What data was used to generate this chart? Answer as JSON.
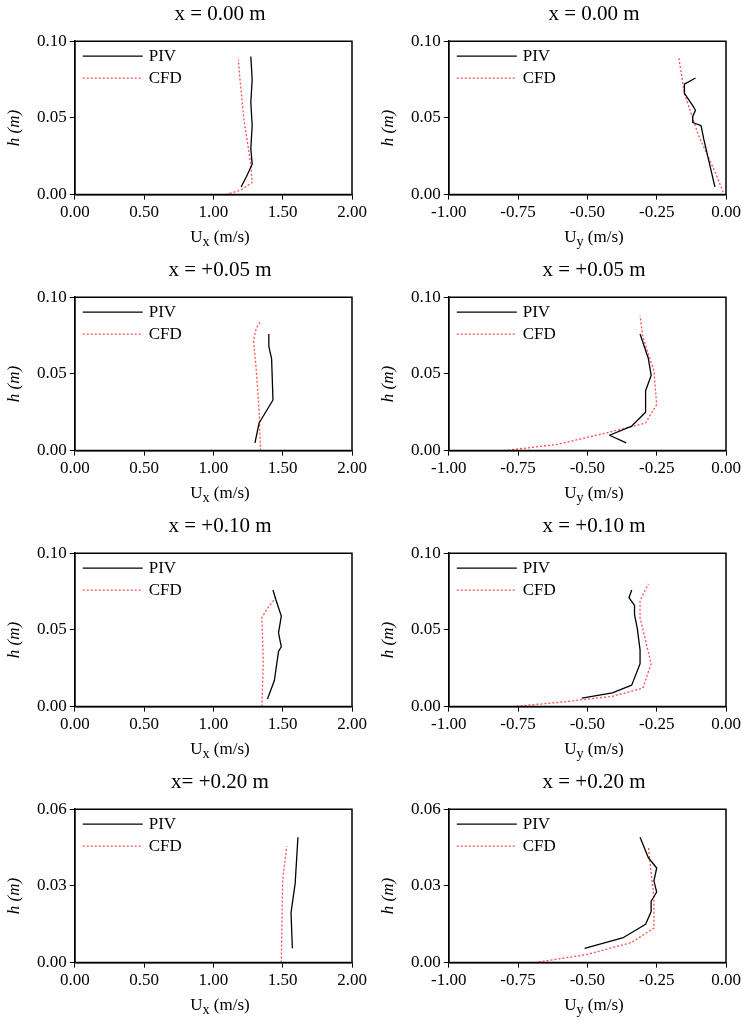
{
  "chart_data": [
    {
      "type": "line",
      "title": "x = 0.00 m",
      "xlabel": "U$_{x}$ (m/s)",
      "ylabel": "h (m)",
      "legend": "top left",
      "xlim": [
        0,
        2
      ],
      "xticks": [
        {
          "value": 0,
          "label": "0.00"
        },
        {
          "value": 0.5,
          "label": "0.50"
        },
        {
          "value": 1,
          "label": "1.00"
        },
        {
          "value": 1.5,
          "label": "1.50"
        },
        {
          "value": 2,
          "label": "2.00"
        }
      ],
      "ylim": [
        0,
        0.1
      ],
      "yticks": [
        {
          "value": 0,
          "label": "0.00"
        },
        {
          "value": 0.05,
          "label": "0.05"
        },
        {
          "value": 0.1,
          "label": "0.10"
        }
      ],
      "series": [
        {
          "name": "PIV",
          "color": "#000000",
          "line_style": "solid",
          "x": [
            1.2,
            1.24,
            1.28,
            1.27,
            1.28,
            1.27,
            1.28,
            1.27
          ],
          "values": [
            0.005,
            0.012,
            0.02,
            0.03,
            0.045,
            0.06,
            0.075,
            0.09
          ]
        },
        {
          "name": "CFD",
          "color": "#ff4d4d",
          "line_style": "dotted",
          "x": [
            1.09,
            1.2,
            1.28,
            1.27,
            1.22,
            1.19,
            1.18
          ],
          "values": [
            0.0,
            0.003,
            0.008,
            0.02,
            0.049,
            0.077,
            0.088
          ]
        }
      ]
    },
    {
      "type": "line",
      "title": "x = 0.00 m",
      "xlabel": "U$_{y}$ (m/s)",
      "ylabel": "h (m)",
      "legend": "top left",
      "xlim": [
        -1,
        0
      ],
      "xticks": [
        {
          "value": -1,
          "label": "-1.00"
        },
        {
          "value": -0.75,
          "label": "-0.75"
        },
        {
          "value": -0.5,
          "label": "-0.50"
        },
        {
          "value": -0.25,
          "label": "-0.25"
        },
        {
          "value": 0,
          "label": "0.00"
        }
      ],
      "ylim": [
        0,
        0.1
      ],
      "yticks": [
        {
          "value": 0,
          "label": "0.00"
        },
        {
          "value": 0.05,
          "label": "0.05"
        },
        {
          "value": 0.1,
          "label": "0.10"
        }
      ],
      "series": [
        {
          "name": "PIV",
          "color": "#000000",
          "line_style": "solid",
          "x": [
            -0.04,
            -0.08,
            -0.09,
            -0.12,
            -0.12,
            -0.11,
            -0.12,
            -0.15,
            -0.15,
            -0.11
          ],
          "values": [
            0.005,
            0.036,
            0.045,
            0.047,
            0.051,
            0.055,
            0.058,
            0.066,
            0.072,
            0.076
          ]
        },
        {
          "name": "CFD",
          "color": "#ff4d4d",
          "line_style": "dotted",
          "x": [
            -0.01,
            -0.04,
            -0.1,
            -0.15,
            -0.17
          ],
          "values": [
            0.0015,
            0.015,
            0.039,
            0.066,
            0.089
          ]
        }
      ]
    },
    {
      "type": "line",
      "title": "x = +0.05 m",
      "xlabel": "U$_{x}$ (m/s)",
      "ylabel": "h (m)",
      "legend": "top left",
      "xlim": [
        0,
        2
      ],
      "xticks": [
        {
          "value": 0,
          "label": "0.00"
        },
        {
          "value": 0.5,
          "label": "0.50"
        },
        {
          "value": 1,
          "label": "1.00"
        },
        {
          "value": 1.5,
          "label": "1.50"
        },
        {
          "value": 2,
          "label": "2.00"
        }
      ],
      "ylim": [
        0,
        0.1
      ],
      "yticks": [
        {
          "value": 0,
          "label": "0.00"
        },
        {
          "value": 0.05,
          "label": "0.05"
        },
        {
          "value": 0.1,
          "label": "0.10"
        }
      ],
      "series": [
        {
          "name": "PIV",
          "color": "#000000",
          "line_style": "solid",
          "x": [
            1.3,
            1.33,
            1.43,
            1.42,
            1.4,
            1.4
          ],
          "values": [
            0.005,
            0.018,
            0.033,
            0.06,
            0.068,
            0.076
          ]
        },
        {
          "name": "CFD",
          "color": "#ff4d4d",
          "line_style": "dotted",
          "x": [
            1.34,
            1.33,
            1.31,
            1.29,
            1.31,
            1.34
          ],
          "values": [
            0.0,
            0.026,
            0.052,
            0.072,
            0.08,
            0.084
          ]
        }
      ]
    },
    {
      "type": "line",
      "title": "x = +0.05 m",
      "xlabel": "U$_{y}$ (m/s)",
      "ylabel": "h (m)",
      "legend": "top left",
      "xlim": [
        -1,
        0
      ],
      "xticks": [
        {
          "value": -1,
          "label": "-1.00"
        },
        {
          "value": -0.75,
          "label": "-0.75"
        },
        {
          "value": -0.5,
          "label": "-0.50"
        },
        {
          "value": -0.25,
          "label": "-0.25"
        },
        {
          "value": 0,
          "label": "0.00"
        }
      ],
      "ylim": [
        0,
        0.1
      ],
      "yticks": [
        {
          "value": 0,
          "label": "0.00"
        },
        {
          "value": 0.05,
          "label": "0.05"
        },
        {
          "value": 0.1,
          "label": "0.10"
        }
      ],
      "series": [
        {
          "name": "PIV",
          "color": "#000000",
          "line_style": "solid",
          "x": [
            -0.36,
            -0.42,
            -0.34,
            -0.29,
            -0.29,
            -0.27,
            -0.28,
            -0.31
          ],
          "values": [
            0.005,
            0.01,
            0.016,
            0.025,
            0.039,
            0.049,
            0.06,
            0.076
          ]
        },
        {
          "name": "CFD",
          "color": "#ff4d4d",
          "line_style": "dotted",
          "x": [
            -0.8,
            -0.61,
            -0.42,
            -0.29,
            -0.25,
            -0.26,
            -0.3,
            -0.31
          ],
          "values": [
            0.0,
            0.004,
            0.012,
            0.018,
            0.03,
            0.052,
            0.074,
            0.088
          ]
        }
      ]
    },
    {
      "type": "line",
      "title": "x = +0.10 m",
      "xlabel": "U$_{x}$ (m/s)",
      "ylabel": "h (m)",
      "legend": "top left",
      "xlim": [
        0,
        2
      ],
      "xticks": [
        {
          "value": 0,
          "label": "0.00"
        },
        {
          "value": 0.5,
          "label": "0.50"
        },
        {
          "value": 1,
          "label": "1.00"
        },
        {
          "value": 1.5,
          "label": "1.50"
        },
        {
          "value": 2,
          "label": "2.00"
        }
      ],
      "ylim": [
        0,
        0.1
      ],
      "yticks": [
        {
          "value": 0,
          "label": "0.00"
        },
        {
          "value": 0.05,
          "label": "0.05"
        },
        {
          "value": 0.1,
          "label": "0.10"
        }
      ],
      "series": [
        {
          "name": "PIV",
          "color": "#000000",
          "line_style": "solid",
          "x": [
            1.39,
            1.44,
            1.47,
            1.49,
            1.47,
            1.49,
            1.45,
            1.43
          ],
          "values": [
            0.005,
            0.017,
            0.036,
            0.039,
            0.048,
            0.059,
            0.07,
            0.076
          ]
        },
        {
          "name": "CFD",
          "color": "#ff4d4d",
          "line_style": "dotted",
          "x": [
            1.35,
            1.36,
            1.35,
            1.39,
            1.45
          ],
          "values": [
            0.0,
            0.03,
            0.058,
            0.064,
            0.071
          ]
        }
      ]
    },
    {
      "type": "line",
      "title": "x = +0.10 m",
      "xlabel": "U$_{y}$ (m/s)",
      "ylabel": "h (m)",
      "legend": "top left",
      "xlim": [
        -1,
        0
      ],
      "xticks": [
        {
          "value": -1,
          "label": "-1.00"
        },
        {
          "value": -0.75,
          "label": "-0.75"
        },
        {
          "value": -0.5,
          "label": "-0.50"
        },
        {
          "value": -0.25,
          "label": "-0.25"
        },
        {
          "value": 0,
          "label": "0.00"
        }
      ],
      "ylim": [
        0,
        0.1
      ],
      "yticks": [
        {
          "value": 0,
          "label": "0.00"
        },
        {
          "value": 0.05,
          "label": "0.05"
        },
        {
          "value": 0.1,
          "label": "0.10"
        }
      ],
      "series": [
        {
          "name": "PIV",
          "color": "#000000",
          "line_style": "solid",
          "x": [
            -0.52,
            -0.41,
            -0.34,
            -0.31,
            -0.31,
            -0.32,
            -0.33,
            -0.33,
            -0.35,
            -0.34
          ],
          "values": [
            0.0055,
            0.009,
            0.014,
            0.028,
            0.037,
            0.051,
            0.06,
            0.066,
            0.071,
            0.076
          ]
        },
        {
          "name": "CFD",
          "color": "#ff4d4d",
          "line_style": "dotted",
          "x": [
            -0.77,
            -0.59,
            -0.41,
            -0.3,
            -0.27,
            -0.29,
            -0.31,
            -0.31,
            -0.28
          ],
          "values": [
            0.0,
            0.003,
            0.0067,
            0.012,
            0.028,
            0.043,
            0.058,
            0.069,
            0.08
          ]
        }
      ]
    },
    {
      "type": "line",
      "title": "x= +0.20 m",
      "xlabel": "U$_{x}$ (m/s)",
      "ylabel": "h (m)",
      "legend": "top left",
      "xlim": [
        0,
        2
      ],
      "xticks": [
        {
          "value": 0,
          "label": "0.00"
        },
        {
          "value": 0.5,
          "label": "0.50"
        },
        {
          "value": 1,
          "label": "1.00"
        },
        {
          "value": 1.5,
          "label": "1.50"
        },
        {
          "value": 2,
          "label": "2.00"
        }
      ],
      "ylim": [
        0,
        0.06
      ],
      "yticks": [
        {
          "value": 0,
          "label": "0.00"
        },
        {
          "value": 0.03,
          "label": "0.03"
        },
        {
          "value": 0.06,
          "label": "0.06"
        }
      ],
      "series": [
        {
          "name": "PIV",
          "color": "#000000",
          "line_style": "solid",
          "x": [
            1.57,
            1.56,
            1.59,
            1.6,
            1.61
          ],
          "values": [
            0.0056,
            0.0195,
            0.031,
            0.04,
            0.049
          ]
        },
        {
          "name": "CFD",
          "color": "#ff4d4d",
          "line_style": "dotted",
          "x": [
            1.49,
            1.5,
            1.53
          ],
          "values": [
            0.0,
            0.0325,
            0.0455
          ]
        }
      ]
    },
    {
      "type": "line",
      "title": "x = +0.20 m",
      "xlabel": "U$_{y}$ (m/s)",
      "ylabel": "h (m)",
      "legend": "top left",
      "xlim": [
        -1,
        0
      ],
      "xticks": [
        {
          "value": -1,
          "label": "-1.00"
        },
        {
          "value": -0.75,
          "label": "-0.75"
        },
        {
          "value": -0.5,
          "label": "-0.50"
        },
        {
          "value": -0.25,
          "label": "-0.25"
        },
        {
          "value": 0,
          "label": "0.00"
        }
      ],
      "ylim": [
        0,
        0.06
      ],
      "yticks": [
        {
          "value": 0,
          "label": "0.00"
        },
        {
          "value": 0.03,
          "label": "0.03"
        },
        {
          "value": 0.06,
          "label": "0.06"
        }
      ],
      "series": [
        {
          "name": "PIV",
          "color": "#000000",
          "line_style": "solid",
          "x": [
            -0.51,
            -0.37,
            -0.29,
            -0.27,
            -0.27,
            -0.25,
            -0.26,
            -0.25,
            -0.28,
            -0.31
          ],
          "values": [
            0.0056,
            0.0098,
            0.015,
            0.02,
            0.024,
            0.0276,
            0.032,
            0.037,
            0.041,
            0.049
          ]
        },
        {
          "name": "CFD",
          "color": "#ff4d4d",
          "line_style": "dotted",
          "x": [
            -0.69,
            -0.5,
            -0.34,
            -0.26,
            -0.26,
            -0.27,
            -0.28
          ],
          "values": [
            0.0,
            0.0032,
            0.0079,
            0.0135,
            0.0257,
            0.035,
            0.0454
          ]
        }
      ]
    }
  ]
}
